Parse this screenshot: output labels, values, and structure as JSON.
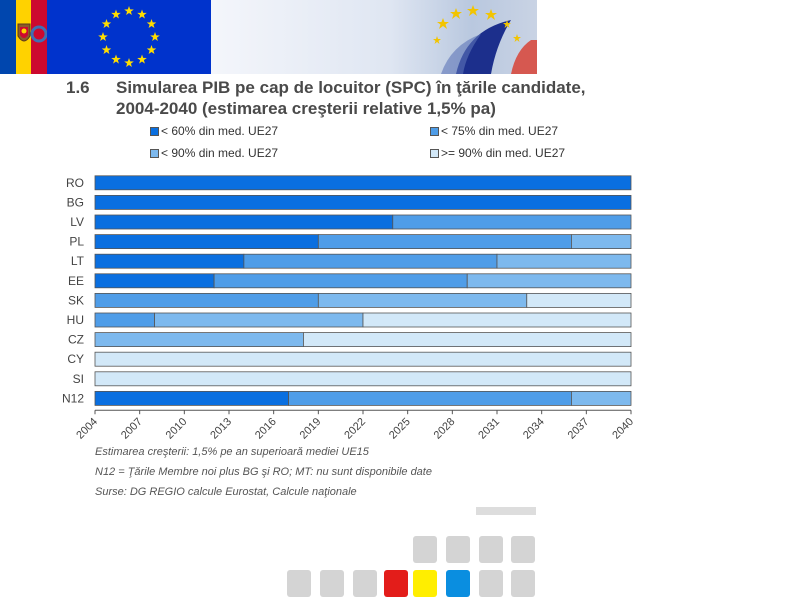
{
  "header": {
    "section_number": "1.6",
    "title_line1": "Simularea PIB pe cap de locuitor (SPC) în ţările candidate,",
    "title_line2": "2004-2040 (estimarea creşterii relative 1,5% pa)"
  },
  "colors": {
    "lt60": "#0a6fe0",
    "lt75": "#4f9de8",
    "lt90": "#7db9ee",
    "ge90": "#d2e8f8",
    "eu_blue": "#0033cc",
    "eu_star": "#ffdd00",
    "md_blue": "#0046ae",
    "md_yellow": "#ffd200",
    "md_red": "#cc092f"
  },
  "legend": [
    {
      "label": "< 60% din med. UE27",
      "color_key": "lt60"
    },
    {
      "label": "< 75% din med. UE27",
      "color_key": "lt75"
    },
    {
      "label": "< 90% din med. UE27",
      "color_key": "lt90"
    },
    {
      "label": ">= 90% din med. UE27",
      "color_key": "ge90"
    }
  ],
  "chart_data": {
    "type": "bar",
    "orientation": "horizontal",
    "stacked": true,
    "title": "Simularea PIB pe cap de locuitor (SPC) în ţările candidate, 2004-2040 (estimarea creşterii relative 1,5% pa)",
    "xlim": [
      2004,
      2040
    ],
    "xticks": [
      "2004",
      "2007",
      "2010",
      "2013",
      "2016",
      "2019",
      "2022",
      "2025",
      "2028",
      "2031",
      "2034",
      "2037",
      "2040"
    ],
    "series_names": [
      "< 60% din med. UE27",
      "< 75% din med. UE27",
      "< 90% din med. UE27",
      ">= 90% din med. UE27"
    ],
    "categories": [
      "RO",
      "BG",
      "LV",
      "PL",
      "LT",
      "EE",
      "SK",
      "HU",
      "CZ",
      "CY",
      "SI",
      "N12"
    ],
    "bars": [
      {
        "label": "RO",
        "segments": [
          {
            "from": 2004,
            "to": 2040,
            "cls": "lt60"
          }
        ]
      },
      {
        "label": "BG",
        "segments": [
          {
            "from": 2004,
            "to": 2040,
            "cls": "lt60"
          }
        ]
      },
      {
        "label": "LV",
        "segments": [
          {
            "from": 2004,
            "to": 2024,
            "cls": "lt60"
          },
          {
            "from": 2024,
            "to": 2040,
            "cls": "lt75"
          }
        ]
      },
      {
        "label": "PL",
        "segments": [
          {
            "from": 2004,
            "to": 2019,
            "cls": "lt60"
          },
          {
            "from": 2019,
            "to": 2036,
            "cls": "lt75"
          },
          {
            "from": 2036,
            "to": 2040,
            "cls": "lt90"
          }
        ]
      },
      {
        "label": "LT",
        "segments": [
          {
            "from": 2004,
            "to": 2014,
            "cls": "lt60"
          },
          {
            "from": 2014,
            "to": 2031,
            "cls": "lt75"
          },
          {
            "from": 2031,
            "to": 2040,
            "cls": "lt90"
          }
        ]
      },
      {
        "label": "EE",
        "segments": [
          {
            "from": 2004,
            "to": 2012,
            "cls": "lt60"
          },
          {
            "from": 2012,
            "to": 2029,
            "cls": "lt75"
          },
          {
            "from": 2029,
            "to": 2040,
            "cls": "lt90"
          }
        ]
      },
      {
        "label": "SK",
        "segments": [
          {
            "from": 2004,
            "to": 2019,
            "cls": "lt75"
          },
          {
            "from": 2019,
            "to": 2033,
            "cls": "lt90"
          },
          {
            "from": 2033,
            "to": 2040,
            "cls": "ge90"
          }
        ]
      },
      {
        "label": "HU",
        "segments": [
          {
            "from": 2004,
            "to": 2008,
            "cls": "lt75"
          },
          {
            "from": 2008,
            "to": 2022,
            "cls": "lt90"
          },
          {
            "from": 2022,
            "to": 2040,
            "cls": "ge90"
          }
        ]
      },
      {
        "label": "CZ",
        "segments": [
          {
            "from": 2004,
            "to": 2018,
            "cls": "lt90"
          },
          {
            "from": 2018,
            "to": 2040,
            "cls": "ge90"
          }
        ]
      },
      {
        "label": "CY",
        "segments": [
          {
            "from": 2004,
            "to": 2040,
            "cls": "ge90"
          }
        ]
      },
      {
        "label": "SI",
        "segments": [
          {
            "from": 2004,
            "to": 2040,
            "cls": "ge90"
          }
        ]
      },
      {
        "label": "N12",
        "segments": [
          {
            "from": 2004,
            "to": 2017,
            "cls": "lt60"
          },
          {
            "from": 2017,
            "to": 2036,
            "cls": "lt75"
          },
          {
            "from": 2036,
            "to": 2040,
            "cls": "lt90"
          }
        ]
      }
    ],
    "grid": false,
    "legend_position": "top"
  },
  "notes": {
    "note1": "Estimarea creşterii: 1,5% pe an superioară mediei UE15",
    "note2": "N12 = Ţările Membre noi plus BG şi RO; MT: nu sunt disponibile date",
    "note3": "Surse: DG REGIO calcule Eurostat, Calcule naţionale"
  },
  "decor": {
    "squares": [
      {
        "color": "#d4d4d4"
      },
      {
        "color": "#d4d4d4"
      },
      {
        "color": "#d4d4d4"
      },
      {
        "color": "#d4d4d4"
      },
      {
        "color": "#d4d4d4"
      },
      {
        "color": "#d4d4d4"
      },
      {
        "color": "#d4d4d4"
      },
      {
        "color": "#e31d1a"
      },
      {
        "color": "#ffee00"
      },
      {
        "color": "#0a8ee0"
      },
      {
        "color": "#d4d4d4"
      },
      {
        "color": "#d4d4d4"
      }
    ]
  }
}
